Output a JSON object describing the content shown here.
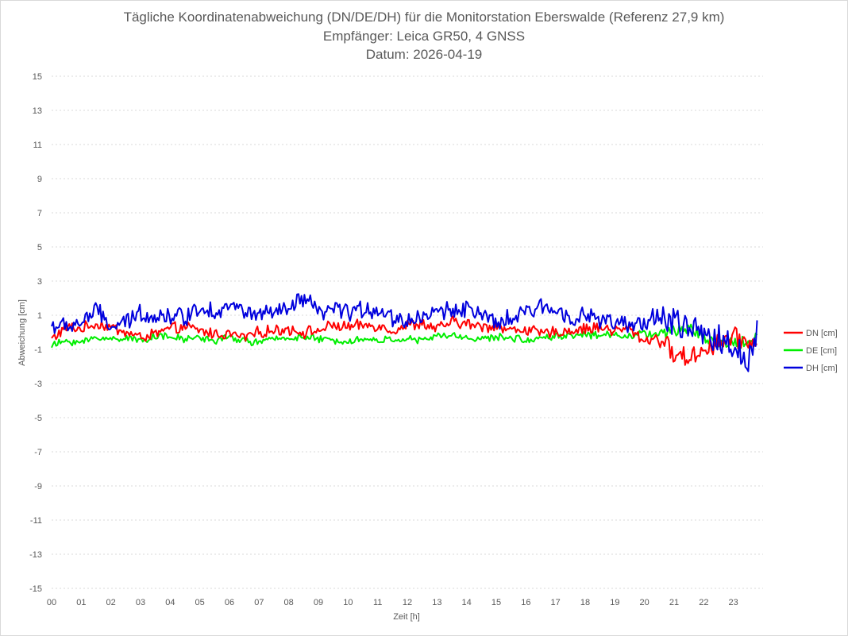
{
  "chart_data": {
    "type": "line",
    "title_lines": [
      "Tägliche Koordinatenabweichung (DN/DE/DH) für die Monitorstation Eberswalde (Referenz 27,9 km)",
      "Empfänger: Leica GR50, 4 GNSS",
      "Datum: 2026-04-19"
    ],
    "xlabel": "Zeit [h]",
    "ylabel": "Abweichung [cm]",
    "xlim": [
      0,
      24
    ],
    "ylim": [
      -15,
      15
    ],
    "y_ticks": [
      15,
      13,
      11,
      9,
      7,
      5,
      3,
      1,
      -1,
      -3,
      -5,
      -7,
      -9,
      -11,
      -13,
      -15
    ],
    "x_tick_labels": [
      "00",
      "01",
      "02",
      "03",
      "04",
      "05",
      "06",
      "07",
      "08",
      "09",
      "10",
      "11",
      "12",
      "13",
      "14",
      "15",
      "16",
      "17",
      "18",
      "19",
      "20",
      "21",
      "22",
      "23"
    ],
    "grid": true,
    "legend_position": "right",
    "x": [
      0.0,
      0.5,
      1.0,
      1.5,
      2.0,
      2.5,
      3.0,
      3.5,
      4.0,
      4.5,
      5.0,
      5.5,
      6.0,
      6.5,
      7.0,
      7.5,
      8.0,
      8.5,
      9.0,
      9.5,
      10.0,
      10.5,
      11.0,
      11.5,
      12.0,
      12.5,
      13.0,
      13.5,
      14.0,
      14.5,
      15.0,
      15.5,
      16.0,
      16.5,
      17.0,
      17.5,
      18.0,
      18.5,
      19.0,
      19.5,
      20.0,
      20.5,
      21.0,
      21.5,
      22.0,
      22.5,
      23.0,
      23.5,
      23.8
    ],
    "series": [
      {
        "name": "DN [cm]",
        "color": "#ff0000",
        "values": [
          -0.4,
          0.3,
          0.2,
          0.5,
          0.3,
          0.0,
          -0.3,
          -0.1,
          0.2,
          0.3,
          0.1,
          -0.1,
          -0.1,
          -0.3,
          0.0,
          0.1,
          0.2,
          0.0,
          0.1,
          0.4,
          0.3,
          0.4,
          0.4,
          0.1,
          0.4,
          0.5,
          0.2,
          0.6,
          0.5,
          0.3,
          0.4,
          0.1,
          0.2,
          -0.1,
          0.0,
          0.1,
          0.2,
          0.3,
          0.1,
          0.2,
          -0.5,
          -0.3,
          -1.3,
          -1.5,
          -1.0,
          -0.6,
          -0.3,
          -0.6,
          -0.5
        ]
      },
      {
        "name": "DE [cm]",
        "color": "#00ee00",
        "values": [
          -0.8,
          -0.5,
          -0.6,
          -0.3,
          -0.4,
          -0.3,
          -0.5,
          -0.2,
          -0.3,
          -0.4,
          -0.3,
          -0.5,
          -0.3,
          -0.5,
          -0.6,
          -0.4,
          -0.3,
          -0.3,
          -0.4,
          -0.5,
          -0.5,
          -0.4,
          -0.5,
          -0.4,
          -0.4,
          -0.5,
          -0.2,
          -0.2,
          -0.3,
          -0.4,
          -0.3,
          -0.3,
          -0.5,
          -0.3,
          -0.2,
          -0.2,
          -0.1,
          -0.2,
          -0.1,
          -0.2,
          -0.1,
          -0.1,
          0.0,
          0.3,
          -0.3,
          -0.6,
          -0.6,
          -0.6,
          -0.2
        ]
      },
      {
        "name": "DH [cm]",
        "color": "#0000dd",
        "values": [
          0.4,
          0.3,
          0.6,
          1.3,
          0.3,
          0.5,
          1.2,
          0.9,
          1.0,
          0.9,
          1.5,
          1.2,
          1.6,
          1.2,
          1.0,
          1.1,
          1.3,
          2.0,
          1.1,
          1.3,
          1.2,
          1.3,
          1.4,
          0.8,
          0.7,
          0.9,
          1.2,
          1.3,
          1.5,
          0.9,
          0.5,
          0.8,
          1.1,
          1.5,
          1.3,
          1.0,
          0.9,
          0.8,
          0.5,
          0.3,
          0.6,
          1.0,
          0.5,
          0.3,
          -0.3,
          -0.4,
          -1.0,
          -1.5,
          0.2
        ]
      }
    ]
  }
}
